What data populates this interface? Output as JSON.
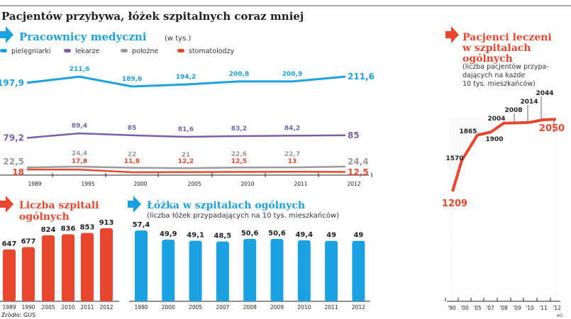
{
  "title": "Pacjentów przybywa, łóżek szpitalnych coraz mniej",
  "source": "Źródło: GUS",
  "credit": "AG",
  "colors": {
    "blue": "#1ba1e2",
    "purple": "#7a5fa8",
    "gray": "#9a9a9a",
    "red": "#e8472e",
    "text": "#222222"
  },
  "chart_data": [
    {
      "type": "line",
      "title": "Pracownicy medyczni",
      "subtitle": "(w tys.)",
      "categories": [
        "1989",
        "1995",
        "2000",
        "2005",
        "2010",
        "2011",
        "2012"
      ],
      "series": [
        {
          "name": "pielęgniarki",
          "color": "#1ba1e2",
          "values": [
            197.9,
            211.6,
            189.6,
            194.2,
            200.8,
            200.9,
            211.6
          ],
          "labels": [
            "197,9",
            "211,6",
            "189,6",
            "194,2",
            "200,8",
            "200,9",
            "211,6"
          ]
        },
        {
          "name": "lekarze",
          "color": "#7a5fa8",
          "values": [
            79.2,
            89.4,
            85,
            81.6,
            83.2,
            84.2,
            85
          ],
          "labels": [
            "79,2",
            "89,4",
            "85",
            "81,6",
            "83,2",
            "84,2",
            "85"
          ]
        },
        {
          "name": "położne",
          "color": "#9a9a9a",
          "values": [
            22.5,
            24.4,
            22,
            21,
            22.6,
            22.7,
            24.4
          ],
          "labels": [
            "22,5",
            "24,4",
            "22",
            "21",
            "22,6",
            "22,7",
            "24,4"
          ]
        },
        {
          "name": "stomatolodzy",
          "color": "#e8472e",
          "values": [
            18,
            17.8,
            11.8,
            12.2,
            12.5,
            13,
            12.5
          ],
          "labels": [
            "18",
            "17,8",
            "11,8",
            "12,2",
            "12,5",
            "13",
            "12,5"
          ]
        }
      ],
      "legend": "top"
    },
    {
      "type": "bar",
      "title": "Liczba szpitali ogólnych",
      "categories": [
        "1989",
        "1990",
        "2005",
        "2010",
        "2011",
        "2012"
      ],
      "values": [
        647,
        677,
        824,
        836,
        853,
        913
      ],
      "color": "#e8472e"
    },
    {
      "type": "bar",
      "title": "Łóżka w szpitalach ogólnych",
      "subtitle": "(liczba łóżek przypadających na 10 tys. mieszkańców)",
      "categories": [
        "1990",
        "2000",
        "2005",
        "2007",
        "2008",
        "2009",
        "2010",
        "2011",
        "2012"
      ],
      "values": [
        57.4,
        49.9,
        49.1,
        48.5,
        50.6,
        50.6,
        49.4,
        49,
        49
      ],
      "labels": [
        "57,4",
        "49,9",
        "49,1",
        "48,5",
        "50,6",
        "50,6",
        "49,4",
        "49",
        "49"
      ],
      "color": "#1ba1e2"
    },
    {
      "type": "area",
      "title": "Pacjenci leczeni w szpitalach ogólnych",
      "subtitle": "(liczba pacjentów przypadających na każde 10 tys. mieszkańców)",
      "categories": [
        "'90",
        "'00",
        "'05",
        "'07",
        "'08",
        "'09",
        "'10",
        "'11",
        "'12"
      ],
      "values": [
        1209,
        1570,
        1865,
        1900,
        2004,
        2008,
        2014,
        2044,
        2050
      ],
      "color": "#e8472e"
    }
  ]
}
